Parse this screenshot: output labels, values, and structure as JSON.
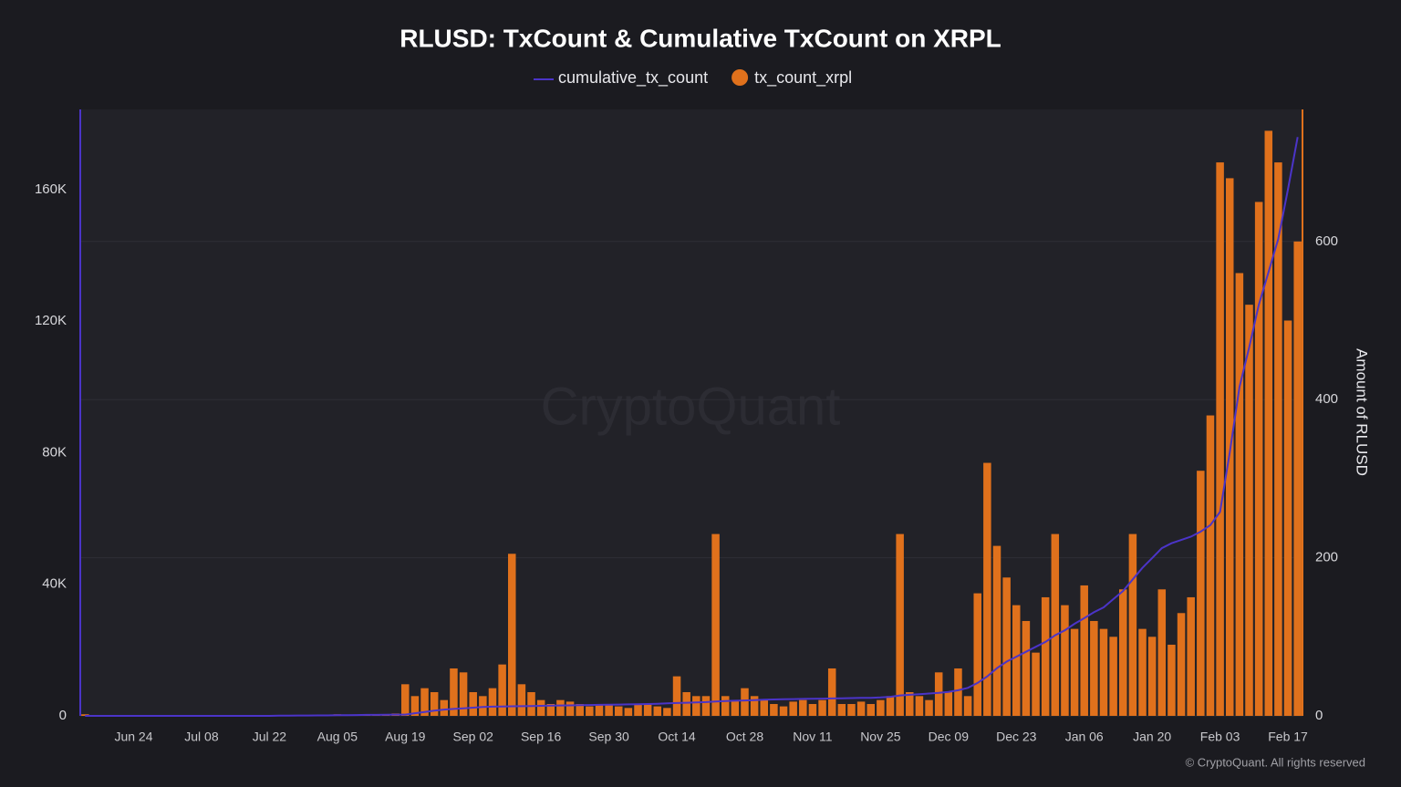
{
  "chart_data": {
    "type": "bar_line",
    "title": "RLUSD: TxCount & Cumulative TxCount on XRPL",
    "y2_label": "Amount of RLUSD",
    "watermark": "CryptoQuant",
    "footer": "© CryptoQuant. All rights reserved",
    "categories": [
      null,
      null,
      null,
      null,
      null,
      "Jun 24",
      null,
      null,
      null,
      null,
      null,
      null,
      "Jul 08",
      null,
      null,
      null,
      null,
      null,
      null,
      "Jul 22",
      null,
      null,
      null,
      null,
      null,
      null,
      "Aug 05",
      null,
      null,
      null,
      null,
      null,
      null,
      "Aug 19",
      null,
      null,
      null,
      null,
      null,
      null,
      "Sep 02",
      null,
      null,
      null,
      null,
      null,
      null,
      "Sep 16",
      null,
      null,
      null,
      null,
      null,
      null,
      "Sep 30",
      null,
      null,
      null,
      null,
      null,
      null,
      "Oct 14",
      null,
      null,
      null,
      null,
      null,
      null,
      "Oct 28",
      null,
      null,
      null,
      null,
      null,
      null,
      "Nov 11",
      null,
      null,
      null,
      null,
      null,
      null,
      "Nov 25",
      null,
      null,
      null,
      null,
      null,
      null,
      "Dec 09",
      null,
      null,
      null,
      null,
      null,
      null,
      "Dec 23",
      null,
      null,
      null,
      null,
      null,
      null,
      "Jan 06",
      null,
      null,
      null,
      null,
      null,
      null,
      "Jan 20",
      null,
      null,
      null,
      null,
      null,
      null,
      "Feb 03",
      null,
      null,
      null,
      null,
      null,
      null,
      "Feb 17",
      null
    ],
    "series": [
      {
        "name": "cumulative_tx_count",
        "color": "#4b34c8",
        "kind": "line",
        "axis": "y",
        "values": [
          0,
          0,
          0,
          0,
          0,
          0,
          0,
          0,
          0,
          0,
          0,
          0,
          0,
          0,
          0,
          0,
          0,
          0,
          0,
          0,
          50,
          50,
          100,
          100,
          150,
          150,
          200,
          200,
          250,
          300,
          300,
          350,
          400,
          400,
          800,
          1200,
          1600,
          1900,
          2100,
          2300,
          2500,
          2700,
          2800,
          2850,
          2900,
          2950,
          3000,
          3050,
          3100,
          3150,
          3200,
          3250,
          3300,
          3350,
          3400,
          3450,
          3500,
          3550,
          3600,
          3700,
          3800,
          3900,
          4000,
          4100,
          4200,
          4350,
          4500,
          4600,
          4700,
          4800,
          4900,
          5000,
          5050,
          5100,
          5150,
          5200,
          5250,
          5300,
          5350,
          5400,
          5450,
          5500,
          5600,
          5800,
          6200,
          6400,
          6600,
          6800,
          7000,
          7300,
          7800,
          8500,
          10000,
          12000,
          14500,
          16500,
          18000,
          19500,
          21000,
          22500,
          24500,
          26000,
          28000,
          29700,
          31500,
          33000,
          35500,
          38000,
          41500,
          45000,
          48000,
          51000,
          52500,
          53500,
          54500,
          56000,
          58000,
          62000,
          80000,
          100000,
          112000,
          125000,
          135000,
          145000,
          160000,
          176000
        ]
      },
      {
        "name": "tx_count_xrpl",
        "color": "#e0711c",
        "kind": "bar",
        "axis": "y2",
        "values": [
          2,
          0,
          0,
          1,
          0,
          0,
          0,
          0,
          1,
          0,
          0,
          0,
          0,
          0,
          0,
          1,
          0,
          0,
          0,
          0,
          0,
          1,
          0,
          0,
          1,
          0,
          2,
          1,
          0,
          1,
          2,
          1,
          3,
          40,
          25,
          35,
          30,
          20,
          60,
          55,
          30,
          25,
          35,
          65,
          205,
          40,
          30,
          20,
          15,
          20,
          18,
          15,
          12,
          15,
          14,
          12,
          10,
          14,
          15,
          12,
          10,
          50,
          30,
          25,
          25,
          230,
          25,
          20,
          35,
          25,
          20,
          15,
          12,
          18,
          20,
          15,
          20,
          60,
          15,
          15,
          18,
          15,
          20,
          25,
          230,
          30,
          25,
          20,
          55,
          30,
          60,
          25,
          155,
          320,
          215,
          175,
          140,
          120,
          80,
          150,
          230,
          140,
          110,
          165,
          120,
          110,
          100,
          160,
          230,
          110,
          100,
          160,
          90,
          130,
          150,
          310,
          380,
          700,
          680,
          560,
          520,
          650,
          740,
          700,
          500,
          600
        ]
      }
    ],
    "ylim": [
      0,
      184400
    ],
    "yticks": [
      {
        "value": 0,
        "label": "0"
      },
      {
        "value": 40000,
        "label": "40K"
      },
      {
        "value": 80000,
        "label": "80K"
      },
      {
        "value": 120000,
        "label": "120K"
      },
      {
        "value": 160000,
        "label": "160K"
      }
    ],
    "y2lim": [
      0,
      767
    ],
    "y2ticks": [
      0,
      200,
      400,
      600
    ],
    "grid": true
  }
}
